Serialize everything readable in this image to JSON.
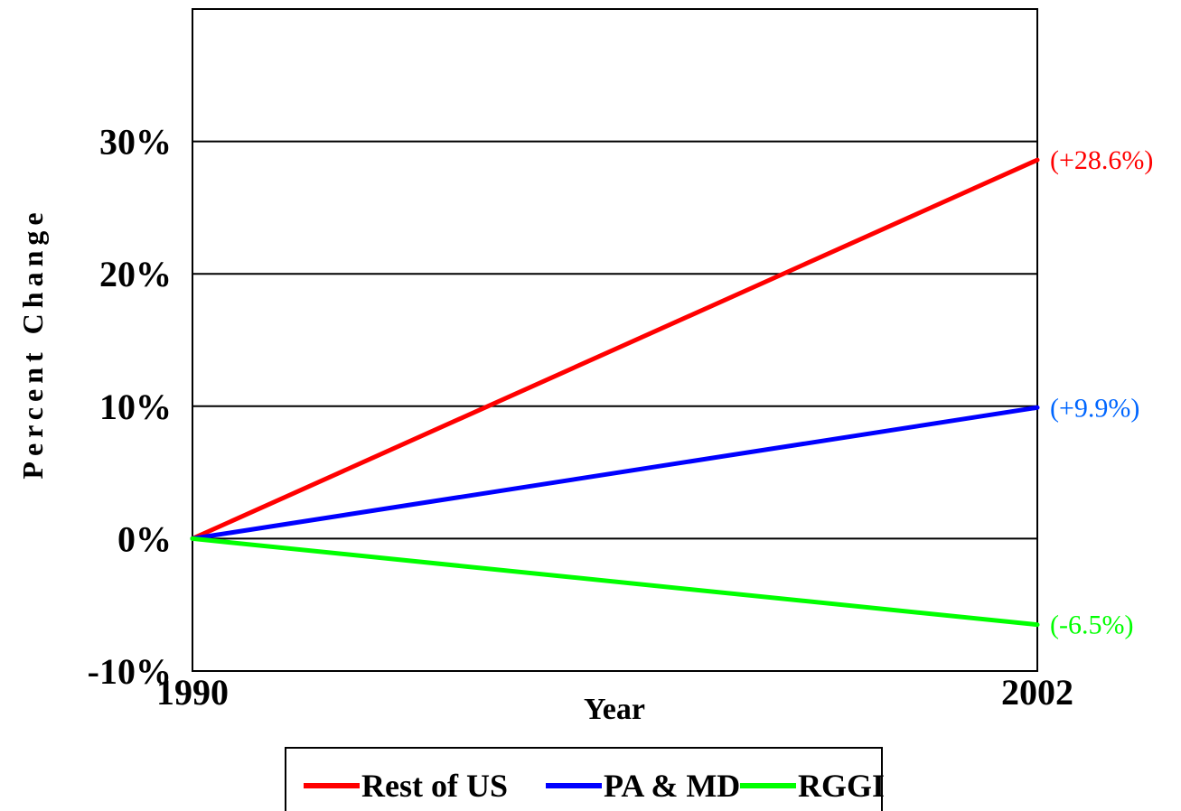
{
  "chart_data": {
    "type": "line",
    "title": "",
    "xlabel": "Year",
    "ylabel": "Percent Change",
    "x": [
      1990,
      2002
    ],
    "x_tick_labels": [
      "1990",
      "2002"
    ],
    "ylim": [
      -10,
      40
    ],
    "y_ticks": [
      -10,
      0,
      10,
      20,
      30
    ],
    "y_tick_labels": [
      "-10%",
      "0%",
      "10%",
      "20%",
      "30%"
    ],
    "grid": true,
    "legend_position": "bottom",
    "series": [
      {
        "name": "Rest of US",
        "values": [
          0,
          28.6
        ],
        "color": "#ff0000",
        "end_label": "(+28.6%)"
      },
      {
        "name": "PA & MD",
        "values": [
          0,
          9.9
        ],
        "color": "#0000ff",
        "end_label_color": "#0066ff",
        "end_label": "(+9.9%)"
      },
      {
        "name": "RGGI",
        "values": [
          0,
          -6.5
        ],
        "color": "#00ff00",
        "end_label": "(-6.5%)"
      }
    ]
  }
}
